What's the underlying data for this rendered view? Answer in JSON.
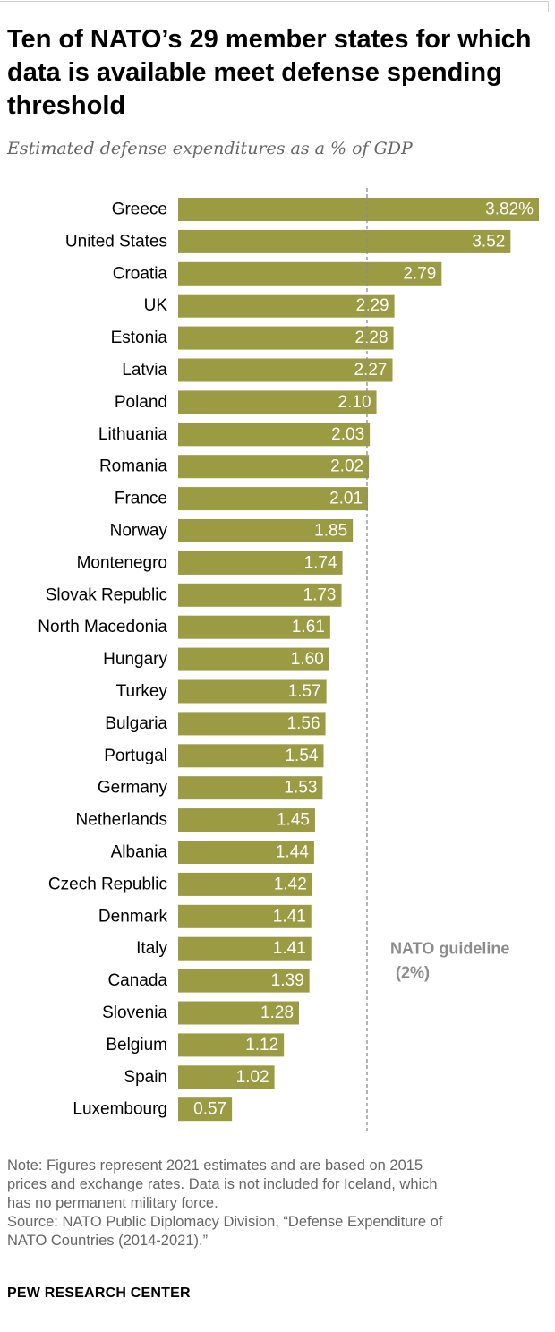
{
  "header": {
    "title": "Ten of NATO’s 29 member states for which data is available meet defense spending threshold",
    "subtitle": "Estimated defense expenditures as a % of GDP"
  },
  "chart_data": {
    "type": "bar",
    "orientation": "horizontal",
    "categories": [
      "Greece",
      "United States",
      "Croatia",
      "UK",
      "Estonia",
      "Latvia",
      "Poland",
      "Lithuania",
      "Romania",
      "France",
      "Norway",
      "Montenegro",
      "Slovak Republic",
      "North Macedonia",
      "Hungary",
      "Turkey",
      "Bulgaria",
      "Portugal",
      "Germany",
      "Netherlands",
      "Albania",
      "Czech Republic",
      "Denmark",
      "Italy",
      "Canada",
      "Slovenia",
      "Belgium",
      "Spain",
      "Luxembourg"
    ],
    "values": [
      3.82,
      3.52,
      2.79,
      2.29,
      2.28,
      2.27,
      2.1,
      2.03,
      2.02,
      2.01,
      1.85,
      1.74,
      1.73,
      1.61,
      1.6,
      1.57,
      1.56,
      1.54,
      1.53,
      1.45,
      1.44,
      1.42,
      1.41,
      1.41,
      1.39,
      1.28,
      1.12,
      1.02,
      0.57
    ],
    "value_labels": [
      "3.82%",
      "3.52",
      "2.79",
      "2.29",
      "2.28",
      "2.27",
      "2.10",
      "2.03",
      "2.02",
      "2.01",
      "1.85",
      "1.74",
      "1.73",
      "1.61",
      "1.60",
      "1.57",
      "1.56",
      "1.54",
      "1.53",
      "1.45",
      "1.44",
      "1.42",
      "1.41",
      "1.41",
      "1.39",
      "1.28",
      "1.12",
      "1.02",
      "0.57"
    ],
    "xlim": [
      0,
      3.82
    ],
    "reference_line": {
      "value": 2,
      "label_line1": "NATO guideline",
      "label_line2": "(2%)"
    },
    "colors": {
      "bar": "#9a9b43",
      "bar_label": "#ffffff",
      "category_label": "#000000",
      "reference_line": "#8c8c8c",
      "reference_label": "#8c8c8c"
    },
    "grid": false,
    "legend": "none"
  },
  "footer": {
    "note_lines": [
      "Note: Figures represent 2021 estimates and are based on 2015",
      "prices and exchange rates. Data is not included for Iceland, which",
      "has no permanent military force."
    ],
    "source_lines": [
      "Source: NATO Public Diplomacy Division, “Defense Expenditure of",
      "NATO Countries (2014-2021).”"
    ],
    "brand": "PEW RESEARCH CENTER"
  }
}
